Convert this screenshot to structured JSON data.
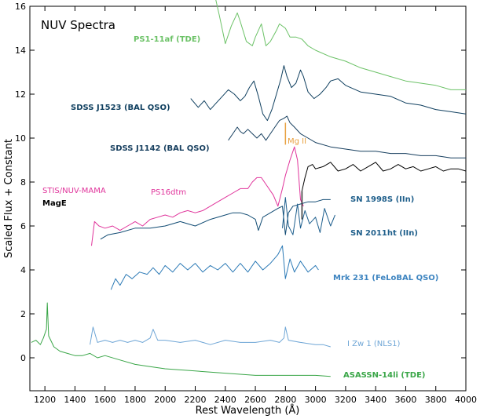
{
  "chart_data": {
    "type": "line",
    "title": "NUV Spectra",
    "xlabel": "Rest Wavelength (Å)",
    "ylabel": "Scaled Flux + Constant",
    "xlim": [
      1100,
      4000
    ],
    "ylim": [
      -1.5,
      16
    ],
    "x_ticks": [
      1200,
      1400,
      1600,
      1800,
      2000,
      2200,
      2400,
      2600,
      2800,
      3000,
      3200,
      3400,
      3600,
      3800,
      4000
    ],
    "y_ticks": [
      0,
      2,
      4,
      6,
      8,
      10,
      12,
      14,
      16
    ],
    "grid": false,
    "series": [
      {
        "name": "PS1-11af (TDE)",
        "color": "#6cc267",
        "points": [
          [
            2330,
            16.5
          ],
          [
            2360,
            15.6
          ],
          [
            2400,
            14.3
          ],
          [
            2440,
            15.1
          ],
          [
            2480,
            15.7
          ],
          [
            2500,
            15.3
          ],
          [
            2540,
            14.4
          ],
          [
            2580,
            14.2
          ],
          [
            2600,
            14.6
          ],
          [
            2640,
            15.2
          ],
          [
            2670,
            14.2
          ],
          [
            2700,
            14.4
          ],
          [
            2740,
            14.9
          ],
          [
            2760,
            15.2
          ],
          [
            2800,
            15.0
          ],
          [
            2830,
            14.6
          ],
          [
            2870,
            14.6
          ],
          [
            2910,
            14.5
          ],
          [
            2950,
            14.2
          ],
          [
            3000,
            14.0
          ],
          [
            3100,
            13.7
          ],
          [
            3200,
            13.5
          ],
          [
            3300,
            13.2
          ],
          [
            3400,
            13.0
          ],
          [
            3500,
            12.8
          ],
          [
            3600,
            12.6
          ],
          [
            3700,
            12.5
          ],
          [
            3800,
            12.4
          ],
          [
            3900,
            12.2
          ],
          [
            4000,
            12.2
          ]
        ]
      },
      {
        "name": "SDSS J1523 (BAL QSO)",
        "color": "#0f3f5f",
        "points": [
          [
            2170,
            11.8
          ],
          [
            2220,
            11.4
          ],
          [
            2260,
            11.7
          ],
          [
            2300,
            11.3
          ],
          [
            2340,
            11.6
          ],
          [
            2380,
            11.9
          ],
          [
            2420,
            12.2
          ],
          [
            2460,
            12.0
          ],
          [
            2500,
            11.7
          ],
          [
            2530,
            11.9
          ],
          [
            2560,
            12.3
          ],
          [
            2590,
            12.6
          ],
          [
            2620,
            11.9
          ],
          [
            2650,
            11.1
          ],
          [
            2680,
            10.8
          ],
          [
            2710,
            11.3
          ],
          [
            2740,
            12.0
          ],
          [
            2770,
            12.7
          ],
          [
            2790,
            13.3
          ],
          [
            2810,
            12.8
          ],
          [
            2840,
            12.3
          ],
          [
            2870,
            12.5
          ],
          [
            2900,
            13.1
          ],
          [
            2920,
            12.8
          ],
          [
            2950,
            12.1
          ],
          [
            2990,
            11.8
          ],
          [
            3030,
            12.0
          ],
          [
            3070,
            12.3
          ],
          [
            3100,
            12.6
          ],
          [
            3150,
            12.7
          ],
          [
            3200,
            12.4
          ],
          [
            3300,
            12.1
          ],
          [
            3400,
            12.0
          ],
          [
            3500,
            11.9
          ],
          [
            3600,
            11.6
          ],
          [
            3700,
            11.5
          ],
          [
            3800,
            11.3
          ],
          [
            3900,
            11.2
          ],
          [
            4000,
            11.1
          ]
        ]
      },
      {
        "name": "SDSS J1142 (BAL QSO)",
        "color": "#173f5f",
        "points": [
          [
            2420,
            9.9
          ],
          [
            2450,
            10.2
          ],
          [
            2480,
            10.5
          ],
          [
            2500,
            10.3
          ],
          [
            2520,
            10.2
          ],
          [
            2550,
            10.4
          ],
          [
            2580,
            10.2
          ],
          [
            2610,
            10.0
          ],
          [
            2640,
            10.2
          ],
          [
            2670,
            9.9
          ],
          [
            2700,
            10.2
          ],
          [
            2730,
            10.5
          ],
          [
            2760,
            10.8
          ],
          [
            2790,
            10.9
          ],
          [
            2810,
            11.0
          ],
          [
            2830,
            10.7
          ],
          [
            2860,
            10.5
          ],
          [
            2900,
            10.2
          ],
          [
            2950,
            10.0
          ],
          [
            3000,
            9.8
          ],
          [
            3100,
            9.6
          ],
          [
            3200,
            9.5
          ],
          [
            3300,
            9.4
          ],
          [
            3400,
            9.4
          ],
          [
            3500,
            9.3
          ],
          [
            3600,
            9.3
          ],
          [
            3700,
            9.2
          ],
          [
            3800,
            9.2
          ],
          [
            3900,
            9.1
          ],
          [
            4000,
            9.1
          ]
        ]
      },
      {
        "name": "STIS/NUV-MAMA",
        "color": "#e0349b",
        "points": [
          [
            1510,
            5.1
          ],
          [
            1530,
            6.2
          ],
          [
            1560,
            6.0
          ],
          [
            1600,
            5.9
          ],
          [
            1650,
            6.0
          ],
          [
            1700,
            5.8
          ],
          [
            1750,
            6.0
          ],
          [
            1800,
            6.2
          ],
          [
            1850,
            6.0
          ],
          [
            1900,
            6.3
          ],
          [
            1950,
            6.4
          ],
          [
            2000,
            6.5
          ],
          [
            2050,
            6.4
          ],
          [
            2100,
            6.6
          ],
          [
            2150,
            6.7
          ],
          [
            2200,
            6.6
          ],
          [
            2250,
            6.7
          ],
          [
            2300,
            6.9
          ],
          [
            2350,
            7.1
          ],
          [
            2400,
            7.3
          ],
          [
            2450,
            7.5
          ],
          [
            2500,
            7.7
          ],
          [
            2550,
            7.7
          ],
          [
            2580,
            8.0
          ],
          [
            2610,
            8.2
          ],
          [
            2640,
            8.2
          ],
          [
            2680,
            7.8
          ],
          [
            2720,
            7.4
          ],
          [
            2750,
            6.9
          ],
          [
            2780,
            7.7
          ],
          [
            2800,
            8.3
          ],
          [
            2830,
            9.0
          ],
          [
            2860,
            9.6
          ],
          [
            2880,
            9.0
          ],
          [
            2900,
            7.2
          ],
          [
            2920,
            6.9
          ]
        ]
      },
      {
        "name": "MagE",
        "color": "#000000",
        "points": [
          [
            2910,
            7.6
          ],
          [
            2930,
            8.2
          ],
          [
            2950,
            8.7
          ],
          [
            2980,
            8.8
          ],
          [
            3000,
            8.6
          ],
          [
            3050,
            8.7
          ],
          [
            3100,
            8.9
          ],
          [
            3150,
            8.5
          ],
          [
            3200,
            8.6
          ],
          [
            3250,
            8.8
          ],
          [
            3300,
            8.5
          ],
          [
            3350,
            8.7
          ],
          [
            3400,
            8.9
          ],
          [
            3450,
            8.5
          ],
          [
            3500,
            8.6
          ],
          [
            3550,
            8.8
          ],
          [
            3600,
            8.6
          ],
          [
            3650,
            8.7
          ],
          [
            3700,
            8.5
          ],
          [
            3750,
            8.6
          ],
          [
            3800,
            8.7
          ],
          [
            3850,
            8.5
          ],
          [
            3900,
            8.6
          ],
          [
            3950,
            8.6
          ],
          [
            4000,
            8.5
          ]
        ]
      },
      {
        "name": "SN 1998S (IIn)",
        "color": "#124c74",
        "points": [
          [
            1570,
            5.4
          ],
          [
            1620,
            5.6
          ],
          [
            1700,
            5.7
          ],
          [
            1800,
            5.9
          ],
          [
            1900,
            5.9
          ],
          [
            2000,
            6.0
          ],
          [
            2100,
            6.2
          ],
          [
            2200,
            6.0
          ],
          [
            2300,
            6.3
          ],
          [
            2400,
            6.5
          ],
          [
            2450,
            6.6
          ],
          [
            2500,
            6.6
          ],
          [
            2550,
            6.5
          ],
          [
            2600,
            6.3
          ],
          [
            2620,
            5.8
          ],
          [
            2650,
            6.4
          ],
          [
            2700,
            6.6
          ],
          [
            2750,
            6.8
          ],
          [
            2780,
            6.9
          ],
          [
            2800,
            5.6
          ],
          [
            2820,
            6.6
          ],
          [
            2850,
            6.9
          ],
          [
            2900,
            7.0
          ],
          [
            2950,
            7.1
          ],
          [
            3000,
            7.1
          ],
          [
            3050,
            7.2
          ],
          [
            3100,
            7.2
          ]
        ]
      },
      {
        "name": "SN 2011ht (IIn)",
        "color": "#1e5f8e",
        "points": [
          [
            2780,
            5.9
          ],
          [
            2800,
            7.3
          ],
          [
            2820,
            6.0
          ],
          [
            2850,
            5.6
          ],
          [
            2880,
            7.0
          ],
          [
            2900,
            5.9
          ],
          [
            2930,
            6.7
          ],
          [
            2960,
            6.1
          ],
          [
            3000,
            6.4
          ],
          [
            3030,
            5.7
          ],
          [
            3060,
            6.8
          ],
          [
            3100,
            6.0
          ],
          [
            3130,
            6.5
          ]
        ]
      },
      {
        "name": "Mrk 231 (FeLoBAL QSO)",
        "color": "#2c7ab6",
        "points": [
          [
            1640,
            3.1
          ],
          [
            1670,
            3.6
          ],
          [
            1700,
            3.3
          ],
          [
            1740,
            3.8
          ],
          [
            1780,
            3.6
          ],
          [
            1830,
            3.9
          ],
          [
            1880,
            3.8
          ],
          [
            1920,
            4.1
          ],
          [
            1960,
            3.8
          ],
          [
            2000,
            4.2
          ],
          [
            2050,
            3.9
          ],
          [
            2100,
            4.3
          ],
          [
            2150,
            4.0
          ],
          [
            2200,
            4.3
          ],
          [
            2250,
            3.9
          ],
          [
            2300,
            4.2
          ],
          [
            2350,
            4.0
          ],
          [
            2400,
            4.3
          ],
          [
            2450,
            3.9
          ],
          [
            2500,
            4.3
          ],
          [
            2550,
            3.9
          ],
          [
            2600,
            4.4
          ],
          [
            2650,
            4.0
          ],
          [
            2700,
            4.3
          ],
          [
            2750,
            4.7
          ],
          [
            2780,
            5.1
          ],
          [
            2800,
            3.6
          ],
          [
            2830,
            4.5
          ],
          [
            2860,
            3.9
          ],
          [
            2900,
            4.4
          ],
          [
            2950,
            3.9
          ],
          [
            3000,
            4.2
          ],
          [
            3020,
            4.0
          ]
        ]
      },
      {
        "name": "I Zw 1 (NLS1)",
        "color": "#6fa6d6",
        "points": [
          [
            1500,
            0.6
          ],
          [
            1520,
            1.4
          ],
          [
            1550,
            0.7
          ],
          [
            1600,
            0.8
          ],
          [
            1650,
            0.7
          ],
          [
            1700,
            0.8
          ],
          [
            1750,
            0.7
          ],
          [
            1800,
            0.8
          ],
          [
            1850,
            0.7
          ],
          [
            1900,
            0.9
          ],
          [
            1920,
            1.3
          ],
          [
            1950,
            0.8
          ],
          [
            2000,
            0.8
          ],
          [
            2100,
            0.7
          ],
          [
            2200,
            0.8
          ],
          [
            2300,
            0.6
          ],
          [
            2400,
            0.8
          ],
          [
            2500,
            0.7
          ],
          [
            2600,
            0.7
          ],
          [
            2700,
            0.8
          ],
          [
            2760,
            0.7
          ],
          [
            2790,
            0.9
          ],
          [
            2800,
            1.4
          ],
          [
            2820,
            0.8
          ],
          [
            2900,
            0.7
          ],
          [
            3000,
            0.6
          ],
          [
            3050,
            0.6
          ],
          [
            3100,
            0.5
          ]
        ]
      },
      {
        "name": "ASASSN-14li (TDE)",
        "color": "#3aa648",
        "points": [
          [
            1110,
            0.7
          ],
          [
            1140,
            0.8
          ],
          [
            1170,
            0.6
          ],
          [
            1190,
            0.9
          ],
          [
            1210,
            1.3
          ],
          [
            1216,
            2.5
          ],
          [
            1225,
            1.0
          ],
          [
            1260,
            0.5
          ],
          [
            1300,
            0.3
          ],
          [
            1350,
            0.2
          ],
          [
            1400,
            0.1
          ],
          [
            1450,
            0.1
          ],
          [
            1500,
            0.2
          ],
          [
            1550,
            0.0
          ],
          [
            1600,
            0.1
          ],
          [
            1700,
            -0.1
          ],
          [
            1800,
            -0.3
          ],
          [
            1900,
            -0.4
          ],
          [
            2000,
            -0.5
          ],
          [
            2200,
            -0.6
          ],
          [
            2400,
            -0.7
          ],
          [
            2600,
            -0.8
          ],
          [
            2800,
            -0.8
          ],
          [
            3000,
            -0.8
          ],
          [
            3100,
            -0.85
          ]
        ]
      }
    ],
    "labels": {
      "ps1": "PS1-11af (TDE)",
      "j1523": "SDSS J1523 (BAL QSO)",
      "j1142": "SDSS J1142 (BAL QSO)",
      "stis": "STIS/NUV-MAMA",
      "mage": "MagE",
      "ps16": "PS16dtm",
      "sn1998s": "SN 1998S (IIn)",
      "sn2011ht": "SN 2011ht (IIn)",
      "mrk231": "Mrk 231 (FeLoBAL QSO)",
      "izw1": "I Zw 1 (NLS1)",
      "asassn": "ASASSN-14li (TDE)",
      "mgii": "Mg II"
    },
    "label_colors": {
      "ps1": "#6cc267",
      "j1523": "#0f3f5f",
      "j1142": "#173f5f",
      "stis": "#e0349b",
      "mage": "#000000",
      "ps16": "#e0349b",
      "sn1998s": "#1f5f8b",
      "sn2011ht": "#1f5f8b",
      "mrk231": "#3d84c0",
      "izw1": "#6fa6d6",
      "asassn": "#3aa648",
      "mgii": "#e8a040"
    },
    "mgii_marker": {
      "x": 2800,
      "y_range": [
        9.7,
        10.7
      ]
    },
    "black_marker": {
      "x": 2910,
      "y_range": [
        6.3,
        7.6
      ]
    }
  }
}
